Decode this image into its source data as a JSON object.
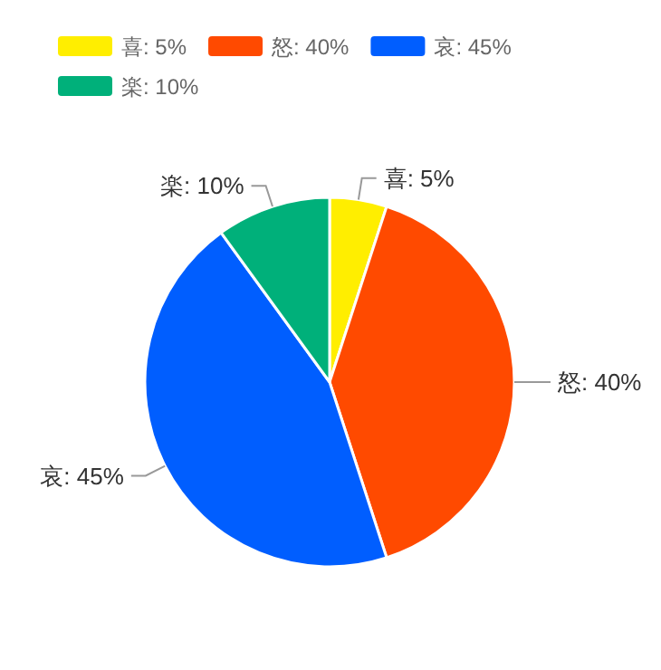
{
  "chart_data": {
    "type": "pie",
    "categories": [
      "喜: 5%",
      "怒: 40%",
      "哀: 45%",
      "楽: 10%"
    ],
    "values": [
      5,
      40,
      45,
      10
    ],
    "colors": [
      "#ffee00",
      "#ff4a00",
      "#005eff",
      "#00b07a"
    ],
    "legend": "top left"
  }
}
